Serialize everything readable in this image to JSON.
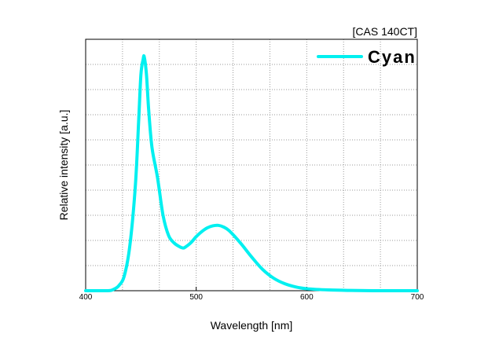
{
  "chart_data": {
    "type": "line",
    "instrument_label": "[CAS 140CT]",
    "xlabel": "Wavelength [nm]",
    "ylabel": "Relative intensity [a.u.]",
    "xlim": [
      400,
      700
    ],
    "ylim": [
      0,
      1.0
    ],
    "x_ticks": [
      400,
      500,
      600,
      700
    ],
    "x_tick_labels": [
      "400",
      "500",
      "600",
      "700"
    ],
    "grid": true,
    "legend_position": "top-right",
    "series": [
      {
        "name": "Cyan",
        "color": "#00f0f0",
        "x": [
          400,
          420,
          425,
          430,
          435,
          440,
          445,
          448,
          450,
          452,
          453,
          455,
          457,
          460,
          465,
          470,
          475,
          480,
          485,
          488,
          490,
          495,
          500,
          505,
          510,
          515,
          520,
          525,
          530,
          540,
          550,
          560,
          570,
          580,
          590,
          600,
          620,
          640,
          660,
          680,
          700
        ],
        "values": [
          0.0,
          0.0,
          0.005,
          0.02,
          0.06,
          0.18,
          0.42,
          0.68,
          0.86,
          0.92,
          0.93,
          0.86,
          0.72,
          0.57,
          0.45,
          0.3,
          0.22,
          0.19,
          0.175,
          0.17,
          0.173,
          0.19,
          0.215,
          0.235,
          0.25,
          0.258,
          0.26,
          0.253,
          0.238,
          0.19,
          0.135,
          0.085,
          0.05,
          0.028,
          0.015,
          0.008,
          0.003,
          0.001,
          0.0,
          0.0,
          0.0
        ]
      }
    ]
  }
}
